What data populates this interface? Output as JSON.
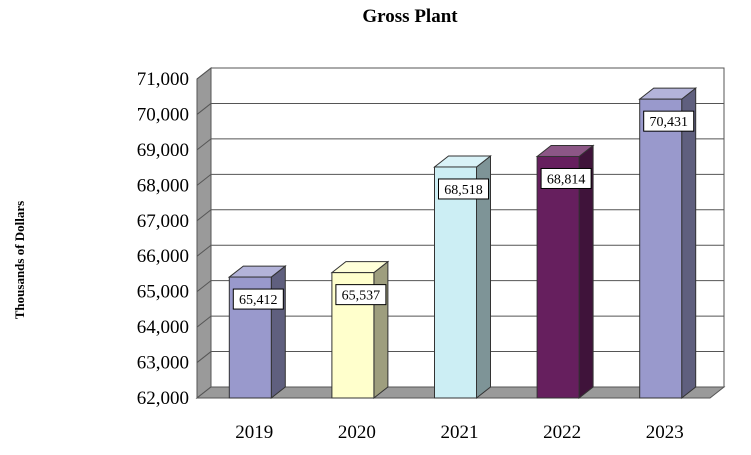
{
  "chart_data": {
    "type": "bar",
    "title": "Gross Plant",
    "xlabel": "",
    "ylabel": "Thousands of Dollars",
    "categories": [
      "2019",
      "2020",
      "2021",
      "2022",
      "2023"
    ],
    "values": [
      65412,
      65537,
      68518,
      68814,
      70431
    ],
    "data_labels": [
      "65,412",
      "65,537",
      "68,518",
      "68,814",
      "70,431"
    ],
    "ylim": [
      62000,
      71000
    ],
    "yticks": [
      62000,
      63000,
      64000,
      65000,
      66000,
      67000,
      68000,
      69000,
      70000,
      71000
    ],
    "ytick_labels": [
      "62,000",
      "63,000",
      "64,000",
      "65,000",
      "66,000",
      "67,000",
      "68,000",
      "69,000",
      "70,000",
      "71,000"
    ],
    "grid": true,
    "style": "3d-column",
    "bar_colors": [
      "#9999CC",
      "#FFFFCC",
      "#CCEEF4",
      "#661F5E",
      "#9999CC"
    ]
  }
}
